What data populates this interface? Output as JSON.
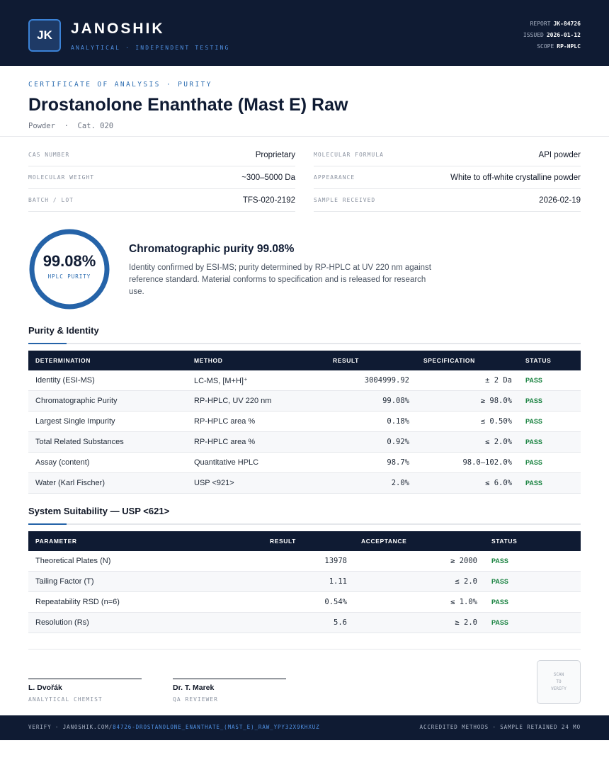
{
  "header": {
    "logo": "JK",
    "brand": "JANOSHIK",
    "tagline": "ANALYTICAL · INDEPENDENT TESTING",
    "meta": [
      {
        "label": "REPORT",
        "value": "JK-84726"
      },
      {
        "label": "ISSUED",
        "value": "2026-01-12"
      },
      {
        "label": "SCOPE",
        "value": "RP-HPLC"
      }
    ]
  },
  "document": {
    "eyebrow": "CERTIFICATE OF ANALYSIS · PURITY",
    "title": "Drostanolone Enanthate (Mast E) Raw",
    "subtitle": "Powder  ·  Cat. 020"
  },
  "properties": [
    {
      "label": "CAS NUMBER",
      "value": "Proprietary"
    },
    {
      "label": "MOLECULAR FORMULA",
      "value": "API powder"
    },
    {
      "label": "MOLECULAR WEIGHT",
      "value": "~300–5000 Da"
    },
    {
      "label": "APPEARANCE",
      "value": "White to off-white crystalline powder"
    },
    {
      "label": "BATCH / LOT",
      "value": "TFS-020-2192"
    },
    {
      "label": "SAMPLE RECEIVED",
      "value": "2026-02-19"
    }
  ],
  "purity": {
    "value": "99.08%",
    "label": "HPLC PURITY",
    "heading": "Chromatographic purity 99.08%",
    "description": "Identity confirmed by ESI-MS; purity determined by RP-HPLC at UV 220 nm against reference standard. Material conforms to specification and is released for research use."
  },
  "purity_table": {
    "title": "Purity & Identity",
    "columns": [
      "DETERMINATION",
      "METHOD",
      "RESULT",
      "SPECIFICATION",
      "STATUS"
    ],
    "rows": [
      [
        "Identity (ESI-MS)",
        "LC-MS, [M+H]⁺",
        "3004999.92",
        "± 2 Da",
        "PASS"
      ],
      [
        "Chromatographic Purity",
        "RP-HPLC, UV 220 nm",
        "99.08%",
        "≥ 98.0%",
        "PASS"
      ],
      [
        "Largest Single Impurity",
        "RP-HPLC area %",
        "0.18%",
        "≤ 0.50%",
        "PASS"
      ],
      [
        "Total Related Substances",
        "RP-HPLC area %",
        "0.92%",
        "≤ 2.0%",
        "PASS"
      ],
      [
        "Assay (content)",
        "Quantitative HPLC",
        "98.7%",
        "98.0–102.0%",
        "PASS"
      ],
      [
        "Water (Karl Fischer)",
        "USP <921>",
        "2.0%",
        "≤ 6.0%",
        "PASS"
      ]
    ]
  },
  "suitability_table": {
    "title": "System Suitability — USP <621>",
    "columns": [
      "PARAMETER",
      "RESULT",
      "ACCEPTANCE",
      "STATUS"
    ],
    "rows": [
      [
        "Theoretical Plates (N)",
        "13978",
        "≥ 2000",
        "PASS"
      ],
      [
        "Tailing Factor (T)",
        "1.11",
        "≤ 2.0",
        "PASS"
      ],
      [
        "Repeatability RSD (n=6)",
        "0.54%",
        "≤ 1.0%",
        "PASS"
      ],
      [
        "Resolution (Rs)",
        "5.6",
        "≥ 2.0",
        "PASS"
      ]
    ]
  },
  "signatures": [
    {
      "name": "L. Dvořák",
      "role": "ANALYTICAL CHEMIST"
    },
    {
      "name": "Dr. T. Marek",
      "role": "QA REVIEWER"
    }
  ],
  "qr": [
    "SCAN",
    "TO",
    "VERIFY"
  ],
  "footer": {
    "verify": "VERIFY · JANOSHIK.COM/",
    "link": "84726-DROSTANOLONE_ENANTHATE_(MAST_E)_RAW_YPY32X9KHXUZ",
    "right": "ACCREDITED METHODS · SAMPLE RETAINED 24 MO"
  }
}
